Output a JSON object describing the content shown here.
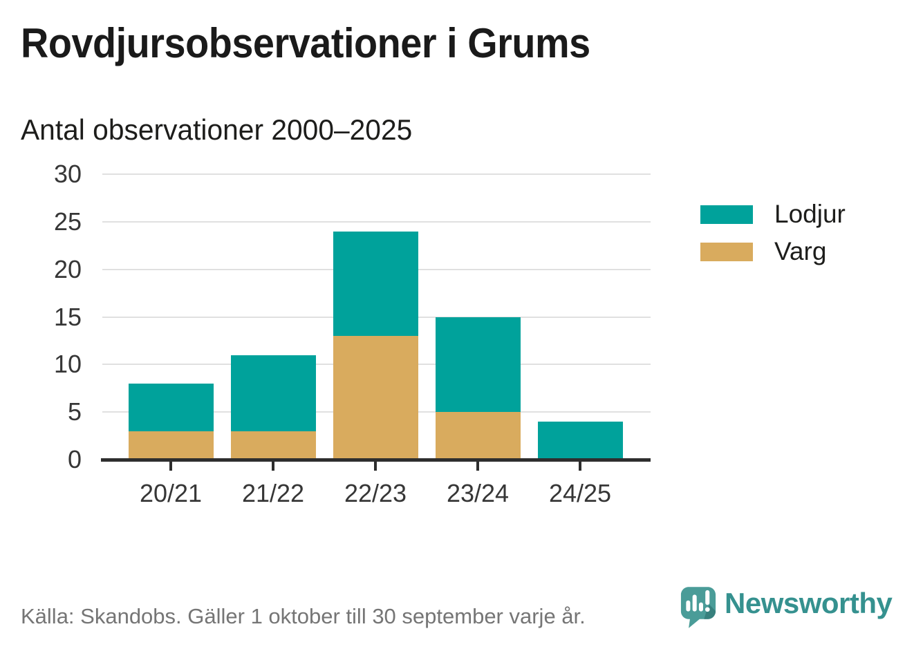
{
  "header": {
    "title": "Rovdjursobservationer i Grums",
    "subtitle": "Antal observationer 2000–2025"
  },
  "colors": {
    "lodjur": "#00a29b",
    "varg": "#d9ab5e",
    "grid": "#e0e0e0",
    "axis": "#2e2e2e",
    "axis_text": "#363636",
    "title_text": "#1a1a1a",
    "footer_text": "#757575",
    "brand_teal": "#35918f",
    "logo_bubble": "#4a9c98",
    "logo_bubble_shadow": "#37807d"
  },
  "chart_data": {
    "type": "bar",
    "stacked": true,
    "title": "Rovdjursobservationer i Grums",
    "subtitle": "Antal observationer 2000–2025",
    "categories": [
      "20/21",
      "21/22",
      "22/23",
      "23/24",
      "24/25"
    ],
    "series": [
      {
        "name": "Varg",
        "color": "#d9ab5e",
        "values": [
          3,
          3,
          13,
          5,
          0
        ]
      },
      {
        "name": "Lodjur",
        "color": "#00a29b",
        "values": [
          5,
          8,
          11,
          10,
          4
        ]
      }
    ],
    "totals": [
      8,
      11,
      24,
      15,
      4
    ],
    "xlabel": "",
    "ylabel": "",
    "ylim": [
      0,
      30
    ],
    "yticks": [
      0,
      5,
      10,
      15,
      20,
      25,
      30
    ],
    "grid": true,
    "legend_position": "right-top"
  },
  "legend": {
    "items": [
      {
        "label": "Lodjur",
        "color": "#00a29b"
      },
      {
        "label": "Varg",
        "color": "#d9ab5e"
      }
    ]
  },
  "footer": {
    "source": "Källa: Skandobs. Gäller 1 oktober till 30 september varje år.",
    "brand": "Newsworthy"
  }
}
